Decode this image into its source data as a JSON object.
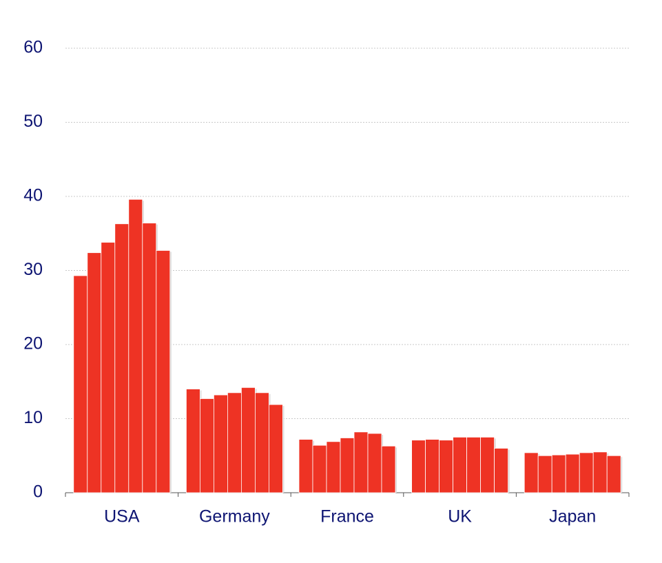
{
  "chart_data": {
    "type": "bar",
    "categories": [
      "USA",
      "Germany",
      "France",
      "UK",
      "Japan"
    ],
    "series": [
      {
        "color": "#ee3324",
        "values": [
          29.3,
          14.0,
          7.2,
          7.1,
          5.4
        ]
      },
      {
        "color": "#ee3324",
        "values": [
          32.4,
          12.7,
          6.4,
          7.2,
          5.0
        ]
      },
      {
        "color": "#ee3324",
        "values": [
          33.8,
          13.2,
          6.9,
          7.1,
          5.1
        ]
      },
      {
        "color": "#ee3324",
        "values": [
          36.3,
          13.5,
          7.4,
          7.5,
          5.2
        ]
      },
      {
        "color": "#ee3324",
        "values": [
          39.6,
          14.2,
          8.2,
          7.5,
          5.4
        ]
      },
      {
        "color": "#ee3324",
        "values": [
          36.4,
          13.5,
          8.0,
          7.5,
          5.5
        ]
      },
      {
        "color": "#ee3324",
        "values": [
          32.7,
          11.9,
          6.3,
          6.0,
          5.0
        ]
      }
    ],
    "ylim": [
      0,
      60
    ],
    "yticks": [
      0,
      10,
      20,
      30,
      40,
      50,
      60
    ],
    "grid": true
  }
}
